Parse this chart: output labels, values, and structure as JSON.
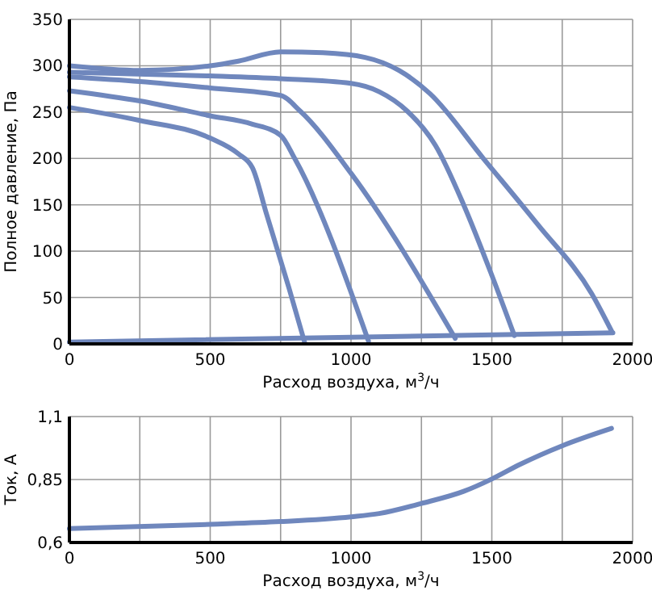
{
  "chart_data": [
    {
      "type": "line",
      "xlabel": "Расход воздуха, м$^{3}$/ч",
      "ylabel": "Полное давление, Па",
      "xlim": [
        0,
        2000
      ],
      "ylim": [
        0,
        350
      ],
      "xticks": [
        0,
        {
          "value": 250,
          "label": null
        },
        500,
        {
          "value": 750,
          "label": null
        },
        1000,
        {
          "value": 1250,
          "label": null
        },
        1500,
        {
          "value": 1750,
          "label": null
        },
        2000
      ],
      "yticks": [
        0,
        50,
        100,
        150,
        200,
        250,
        300,
        350
      ],
      "grid": true,
      "marker": "none",
      "line_style": "solid",
      "series": [
        {
          "color": "#6f87bd",
          "x": [
            0,
            250,
            500,
            600,
            750,
            900,
            1050,
            1170,
            1280,
            1470,
            1665,
            1855,
            1925
          ],
          "values": [
            300,
            295,
            300,
            305,
            315,
            314,
            309,
            295,
            270,
            200,
            128,
            54,
            14
          ]
        },
        {
          "color": "#6f87bd",
          "x": [
            0,
            500,
            750,
            1000,
            1100,
            1200,
            1300,
            1400,
            1500,
            1580
          ],
          "values": [
            293,
            289,
            286,
            281,
            272,
            251,
            214,
            150,
            74,
            9
          ]
        },
        {
          "color": "#6f87bd",
          "x": [
            0,
            250,
            500,
            750,
            820,
            1000,
            1370
          ],
          "values": [
            288,
            283,
            276,
            268,
            251,
            184,
            6
          ]
        },
        {
          "color": "#6f87bd",
          "x": [
            0,
            250,
            500,
            650,
            750,
            800,
            1062
          ],
          "values": [
            273,
            262,
            246,
            237,
            225,
            200,
            3
          ]
        },
        {
          "color": "#6f87bd",
          "x": [
            0,
            250,
            500,
            600,
            650,
            700,
            780,
            835
          ],
          "values": [
            255,
            241,
            222,
            205,
            190,
            140,
            60,
            2
          ]
        },
        {
          "color": "#6f87bd",
          "x": [
            0,
            1930
          ],
          "values": [
            2,
            12
          ]
        }
      ]
    },
    {
      "type": "line",
      "xlabel": "Расход воздуха, м$^{3}$/ч",
      "ylabel": "Ток, А",
      "xlim": [
        0,
        2000
      ],
      "ylim": [
        0.6,
        1.1
      ],
      "xticks": [
        0,
        {
          "value": 250,
          "label": null
        },
        500,
        {
          "value": 750,
          "label": null
        },
        1000,
        {
          "value": 1250,
          "label": null
        },
        1500,
        {
          "value": 1750,
          "label": null
        },
        2000
      ],
      "yticks": [
        {
          "value": 0.6,
          "label": "0,6"
        },
        {
          "value": 0.85,
          "label": "0,85"
        },
        {
          "value": 1.1,
          "label": "1,1"
        }
      ],
      "grid": true,
      "marker": "none",
      "line_style": "solid",
      "series": [
        {
          "color": "#6f87bd",
          "x": [
            0,
            500,
            750,
            1000,
            1100,
            1250,
            1400,
            1500,
            1600,
            1750,
            1925
          ],
          "values": [
            0.655,
            0.672,
            0.683,
            0.702,
            0.715,
            0.755,
            0.803,
            0.852,
            0.91,
            0.984,
            1.053
          ]
        }
      ]
    }
  ]
}
